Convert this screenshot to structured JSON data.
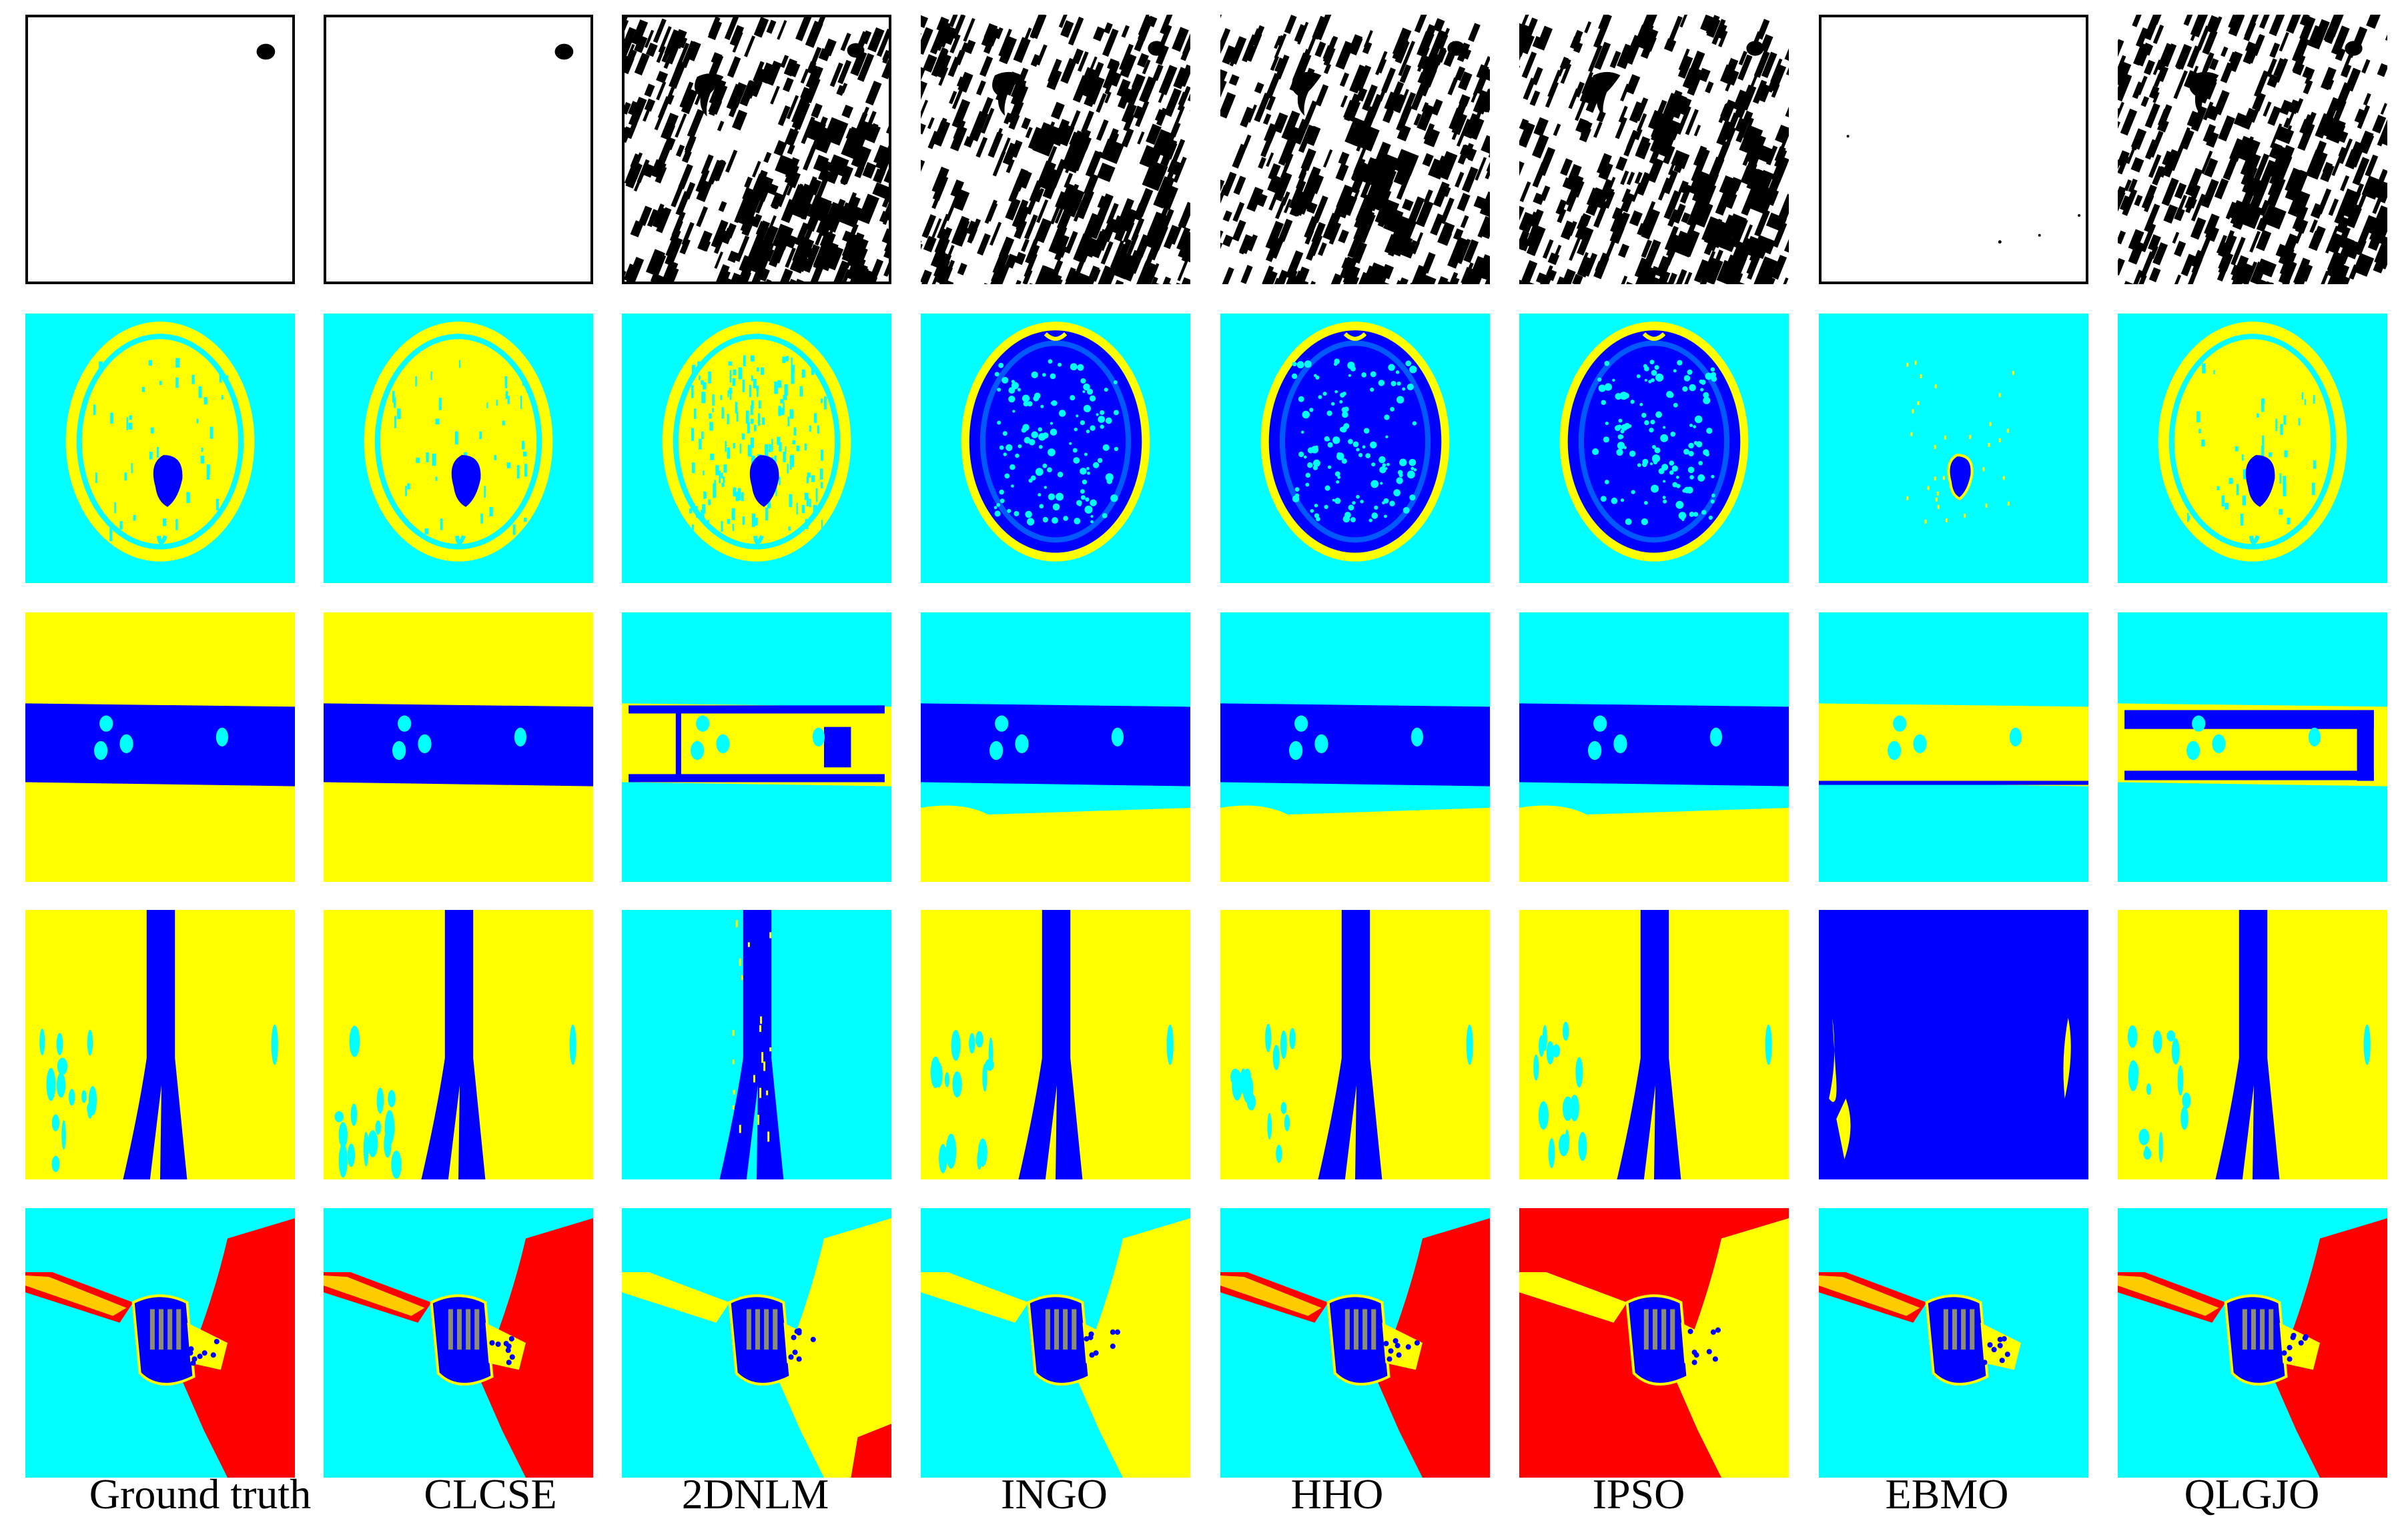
{
  "colors": {
    "cyan": "#00FFFF",
    "yellow": "#FFFF00",
    "blue": "#0000FF",
    "red": "#FF0000",
    "black": "#000000",
    "white": "#FFFFFF"
  },
  "methods": [
    {
      "label": "Ground truth"
    },
    {
      "label": "CLCSE"
    },
    {
      "label": "2DNLM"
    },
    {
      "label": "INGO"
    },
    {
      "label": "HHO"
    },
    {
      "label": "IPSO"
    },
    {
      "label": "EBMO"
    },
    {
      "label": "QLGJO"
    }
  ],
  "rows": [
    {
      "name": "noise-texture",
      "tiles": [
        "white-spot",
        "white-spot",
        "stripes-framed",
        "stripes",
        "stripes",
        "stripes",
        "white-sparse",
        "stripes"
      ]
    },
    {
      "name": "brain-mri",
      "tiles": [
        "brain-yellow",
        "brain-yellow",
        "brain-wrinkled",
        "brain-blue",
        "brain-blue",
        "brain-blue",
        "brain-faint",
        "brain-yellow"
      ]
    },
    {
      "name": "band",
      "tiles": [
        "band-blue",
        "band-blue",
        "band-yellow",
        "band-cyan",
        "band-cyan",
        "band-cyan",
        "band-faint",
        "band-mixed"
      ]
    },
    {
      "name": "vertical-strip",
      "tiles": [
        "strip-yellow",
        "strip-yellow",
        "strip-cyan",
        "strip-yellow",
        "strip-yellow",
        "strip-yellow",
        "strip-allblue",
        "strip-yellow"
      ]
    },
    {
      "name": "tool",
      "tiles": [
        "tool-red",
        "tool-red",
        "tool-yellowred",
        "tool-yellow",
        "tool-red",
        "tool-redbg",
        "tool-sparse",
        "tool-red"
      ]
    }
  ]
}
